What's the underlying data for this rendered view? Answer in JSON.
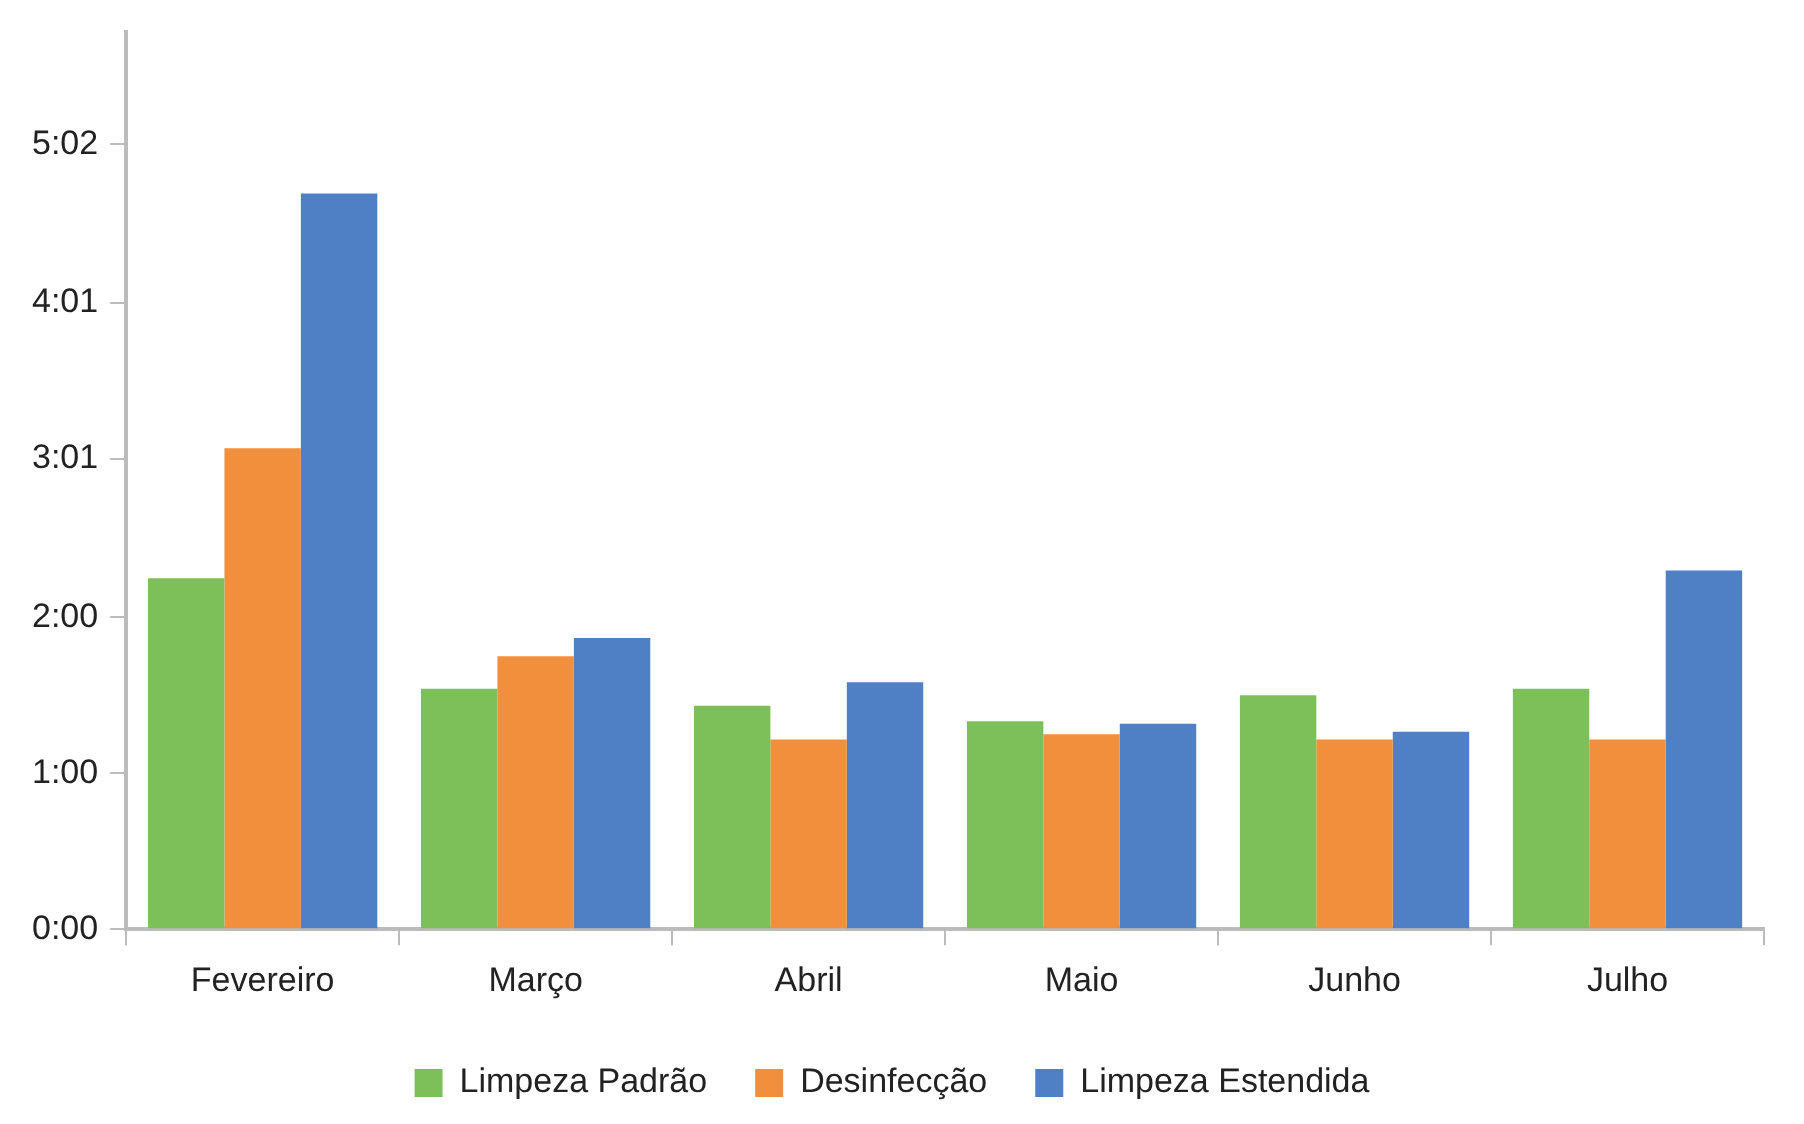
{
  "chart_data": {
    "type": "bar",
    "categories": [
      "Fevereiro",
      "Março",
      "Abril",
      "Maio",
      "Junho",
      "Julho"
    ],
    "series": [
      {
        "name": "Limpeza Padrão",
        "color": "#7dc05a",
        "values": [
          135,
          92.5,
          86,
          80,
          90,
          92.5
        ]
      },
      {
        "name": "Desinfecção",
        "color": "#f18f3c",
        "values": [
          185,
          105,
          73,
          75,
          73,
          73
        ]
      },
      {
        "name": "Limpeza Estendida",
        "color": "#4f7fc4",
        "values": [
          283,
          112,
          95,
          79,
          76,
          138
        ]
      }
    ],
    "ylim": [
      0,
      345
    ],
    "yticks": [
      {
        "value": 0,
        "label": "0:00"
      },
      {
        "value": 60,
        "label": "1:00"
      },
      {
        "value": 120,
        "label": "2:00"
      },
      {
        "value": 181,
        "label": "3:01"
      },
      {
        "value": 241,
        "label": "4:01"
      },
      {
        "value": 302,
        "label": "5:02"
      }
    ],
    "grid": false,
    "legend": "bottom"
  }
}
